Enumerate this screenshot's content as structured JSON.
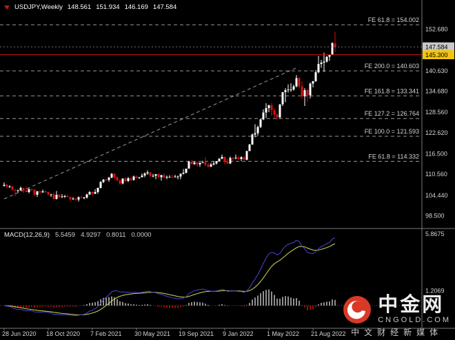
{
  "header": {
    "symbol": "USDJPY,Weekly",
    "open": "148.561",
    "high": "151.934",
    "low": "146.169",
    "close": "147.584"
  },
  "colors": {
    "background": "#000000",
    "up_candle": "#ffffff",
    "down_candle": "#dd1111",
    "fib_line": "#9a9a9a",
    "trend_line": "#9a9a9a",
    "current_line": "#cc1111",
    "bid_dotted_line": "#777777",
    "axis_line": "#7a7a7a",
    "axis_text": "#d4d4d4",
    "price_box_bg": "#c8c8c8",
    "level_box_bg": "#f2c40f",
    "macd_main": "#4747d1",
    "macd_signal": "#d8d855",
    "hist_pos": "#c0c0c0",
    "hist_neg": "#cc1111"
  },
  "watermark": {
    "title": "中金网",
    "domain": "CNGOLD.COM",
    "tagline": "中文财经新媒体"
  },
  "chart_data": {
    "type": "candlestick",
    "symbol": "USDJPY",
    "timeframe": "Weekly",
    "price_axis_labels": [
      "152.680",
      "140.630",
      "134.680",
      "128.560",
      "122.620",
      "116.500",
      "110.560",
      "104.440",
      "98.500"
    ],
    "current_price_box": "147.584",
    "line_price_box": "145.300",
    "fib_levels": [
      {
        "label": "FE 61.8 = 154.002",
        "value": 154.002
      },
      {
        "label": "FE 200.0 = 140.603",
        "value": 140.603
      },
      {
        "label": "FE 161.8 = 133.341",
        "value": 133.341
      },
      {
        "label": "FE 127.2 = 126.764",
        "value": 126.764
      },
      {
        "label": "FE 100.0 = 121.593",
        "value": 121.593
      },
      {
        "label": "FE 61.8 = 114.332",
        "value": 114.332
      }
    ],
    "trendline": {
      "start_index": 0,
      "start_price": 103.4,
      "end_index": 106,
      "end_price": 141.5
    },
    "x_axis_labels": [
      {
        "index": 0,
        "label": "28 Jun 2020"
      },
      {
        "index": 16,
        "label": "18 Oct 2020"
      },
      {
        "index": 32,
        "label": "7 Feb 2021"
      },
      {
        "index": 48,
        "label": "30 May 2021"
      },
      {
        "index": 64,
        "label": "19 Sep 2021"
      },
      {
        "index": 80,
        "label": "9 Jan 2022"
      },
      {
        "index": 96,
        "label": "1 May 2022"
      },
      {
        "index": 112,
        "label": "21 Aug 2022"
      }
    ],
    "macd": {
      "title": "MACD(12,26,9)",
      "main": "5.5459",
      "signal": "4.9297",
      "hist": "0.8011",
      "zero": "0.0000",
      "params": {
        "fast": 12,
        "slow": 26,
        "signal": 9
      },
      "axis_labels": [
        {
          "value": 5.8675,
          "label": "5.8675"
        },
        {
          "value": 1.2069,
          "label": "1.2069"
        }
      ]
    },
    "candles": [
      [
        107.2,
        108.2,
        107.0,
        107.5
      ],
      [
        107.5,
        107.8,
        106.6,
        106.9
      ],
      [
        106.9,
        107.4,
        106.6,
        107.0
      ],
      [
        107.0,
        107.3,
        105.7,
        106.1
      ],
      [
        106.1,
        106.2,
        104.2,
        105.9
      ],
      [
        105.9,
        106.1,
        105.3,
        105.9
      ],
      [
        105.9,
        107.0,
        105.7,
        106.6
      ],
      [
        106.6,
        106.7,
        105.1,
        105.8
      ],
      [
        105.8,
        106.9,
        105.3,
        105.4
      ],
      [
        105.4,
        106.5,
        105.0,
        106.2
      ],
      [
        106.2,
        106.4,
        105.6,
        106.1
      ],
      [
        106.1,
        106.2,
        104.3,
        104.6
      ],
      [
        104.6,
        105.7,
        104.0,
        105.6
      ],
      [
        105.6,
        105.8,
        104.9,
        105.3
      ],
      [
        105.3,
        106.1,
        105.2,
        105.6
      ],
      [
        105.6,
        105.8,
        105.0,
        105.4
      ],
      [
        105.4,
        105.5,
        104.3,
        104.7
      ],
      [
        104.7,
        104.9,
        104.0,
        104.7
      ],
      [
        104.7,
        105.3,
        103.2,
        103.4
      ],
      [
        103.4,
        105.7,
        103.2,
        104.6
      ],
      [
        104.6,
        104.8,
        103.6,
        103.9
      ],
      [
        103.9,
        104.8,
        103.7,
        104.1
      ],
      [
        104.1,
        104.6,
        103.7,
        104.2
      ],
      [
        104.2,
        104.6,
        103.8,
        104.0
      ],
      [
        104.0,
        104.1,
        102.9,
        103.3
      ],
      [
        103.3,
        103.9,
        103.1,
        103.5
      ],
      [
        103.5,
        103.6,
        102.8,
        103.2
      ],
      [
        103.2,
        104.1,
        102.6,
        103.9
      ],
      [
        103.9,
        104.3,
        103.5,
        103.7
      ],
      [
        103.7,
        104.0,
        103.3,
        103.8
      ],
      [
        103.8,
        104.9,
        103.5,
        104.7
      ],
      [
        104.7,
        105.7,
        104.5,
        105.4
      ],
      [
        105.4,
        105.6,
        104.4,
        104.9
      ],
      [
        104.9,
        106.2,
        104.8,
        105.4
      ],
      [
        105.4,
        106.7,
        104.9,
        106.6
      ],
      [
        106.6,
        108.6,
        106.4,
        108.3
      ],
      [
        108.3,
        109.2,
        108.0,
        109.0
      ],
      [
        109.0,
        109.3,
        108.6,
        108.9
      ],
      [
        108.9,
        109.8,
        108.4,
        109.6
      ],
      [
        109.6,
        110.9,
        109.4,
        110.7
      ],
      [
        110.7,
        110.8,
        109.0,
        109.7
      ],
      [
        109.7,
        109.9,
        108.6,
        108.8
      ],
      [
        108.8,
        108.9,
        107.5,
        107.9
      ],
      [
        107.9,
        109.4,
        107.6,
        109.3
      ],
      [
        109.3,
        109.7,
        108.3,
        108.6
      ],
      [
        108.6,
        109.8,
        108.3,
        109.4
      ],
      [
        109.4,
        109.5,
        108.6,
        108.9
      ],
      [
        108.9,
        110.2,
        108.7,
        109.9
      ],
      [
        109.9,
        110.3,
        109.3,
        109.5
      ],
      [
        109.5,
        109.8,
        109.2,
        109.7
      ],
      [
        109.7,
        110.8,
        109.7,
        110.2
      ],
      [
        110.2,
        111.1,
        109.7,
        110.8
      ],
      [
        110.8,
        111.7,
        110.4,
        111.1
      ],
      [
        111.1,
        111.2,
        109.5,
        110.1
      ],
      [
        110.1,
        110.7,
        109.7,
        110.1
      ],
      [
        110.1,
        110.6,
        109.1,
        110.6
      ],
      [
        110.6,
        110.8,
        109.4,
        109.7
      ],
      [
        109.7,
        110.4,
        108.7,
        110.3
      ],
      [
        110.3,
        110.8,
        109.5,
        109.6
      ],
      [
        109.6,
        110.2,
        109.1,
        109.8
      ],
      [
        109.8,
        110.3,
        109.6,
        109.8
      ],
      [
        109.8,
        110.4,
        109.6,
        109.7
      ],
      [
        109.7,
        110.4,
        109.6,
        109.9
      ],
      [
        109.9,
        110.2,
        109.1,
        109.9
      ],
      [
        109.9,
        110.8,
        109.1,
        110.7
      ],
      [
        110.7,
        112.1,
        110.5,
        111.0
      ],
      [
        111.0,
        112.2,
        110.8,
        112.2
      ],
      [
        112.2,
        114.5,
        112.2,
        114.2
      ],
      [
        114.2,
        114.7,
        113.4,
        113.5
      ],
      [
        113.5,
        114.3,
        113.3,
        114.0
      ],
      [
        114.0,
        114.3,
        112.7,
        113.4
      ],
      [
        113.4,
        114.0,
        112.7,
        113.9
      ],
      [
        113.9,
        114.5,
        113.8,
        114.0
      ],
      [
        114.0,
        115.5,
        113.0,
        113.3
      ],
      [
        113.3,
        113.9,
        112.5,
        112.8
      ],
      [
        112.8,
        113.9,
        112.6,
        113.4
      ],
      [
        113.4,
        114.3,
        113.1,
        113.7
      ],
      [
        113.7,
        114.4,
        113.4,
        114.4
      ],
      [
        114.4,
        115.2,
        114.3,
        115.1
      ],
      [
        115.1,
        116.3,
        114.9,
        115.6
      ],
      [
        115.6,
        115.7,
        113.5,
        114.2
      ],
      [
        114.2,
        115.1,
        113.6,
        113.7
      ],
      [
        113.7,
        115.7,
        113.5,
        115.3
      ],
      [
        115.3,
        115.6,
        114.2,
        115.2
      ],
      [
        115.2,
        116.3,
        114.9,
        115.4
      ],
      [
        115.4,
        115.9,
        114.8,
        115.0
      ],
      [
        115.0,
        115.8,
        114.4,
        115.5
      ],
      [
        115.5,
        115.8,
        114.7,
        114.8
      ],
      [
        114.8,
        117.4,
        114.6,
        117.3
      ],
      [
        117.3,
        119.4,
        117.3,
        119.2
      ],
      [
        119.2,
        122.4,
        119.1,
        122.1
      ],
      [
        122.1,
        125.1,
        121.3,
        122.5
      ],
      [
        122.5,
        124.7,
        121.8,
        124.3
      ],
      [
        124.3,
        126.7,
        124.0,
        126.5
      ],
      [
        126.5,
        129.4,
        126.3,
        128.5
      ],
      [
        128.5,
        131.2,
        126.9,
        129.8
      ],
      [
        129.8,
        130.8,
        128.6,
        130.6
      ],
      [
        130.6,
        131.3,
        127.5,
        129.2
      ],
      [
        129.2,
        129.8,
        127.0,
        127.9
      ],
      [
        127.9,
        128.1,
        126.4,
        127.1
      ],
      [
        127.1,
        130.9,
        126.8,
        130.9
      ],
      [
        130.9,
        134.5,
        130.4,
        134.4
      ],
      [
        134.4,
        135.6,
        131.5,
        135.0
      ],
      [
        135.0,
        136.7,
        134.3,
        135.2
      ],
      [
        135.2,
        137.0,
        134.5,
        135.2
      ],
      [
        135.2,
        136.6,
        134.8,
        136.1
      ],
      [
        136.1,
        139.4,
        135.8,
        138.5
      ],
      [
        138.5,
        138.9,
        135.6,
        136.1
      ],
      [
        136.1,
        137.5,
        132.5,
        133.2
      ],
      [
        133.2,
        135.6,
        130.4,
        135.0
      ],
      [
        135.0,
        135.5,
        131.7,
        133.5
      ],
      [
        133.5,
        137.2,
        132.6,
        136.9
      ],
      [
        136.9,
        137.7,
        135.8,
        137.6
      ],
      [
        137.6,
        140.8,
        137.4,
        140.2
      ],
      [
        140.2,
        145.0,
        139.9,
        142.6
      ],
      [
        142.6,
        143.8,
        141.5,
        143.0
      ],
      [
        143.0,
        145.9,
        140.3,
        143.3
      ],
      [
        143.3,
        144.9,
        143.0,
        144.7
      ],
      [
        144.7,
        145.4,
        143.5,
        145.3
      ],
      [
        145.3,
        148.9,
        145.2,
        148.7
      ],
      [
        148.561,
        151.934,
        146.169,
        147.584
      ]
    ]
  }
}
